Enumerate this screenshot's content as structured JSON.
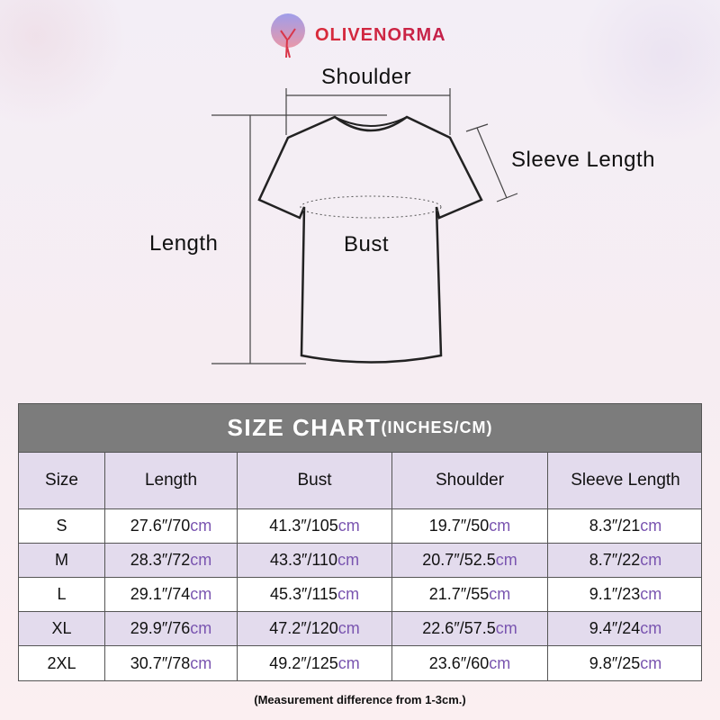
{
  "brand": {
    "name": "OLIVENORMA",
    "color": "#d92b3a"
  },
  "diagram": {
    "shoulder": "Shoulder",
    "sleeve_length": "Sleeve Length",
    "length": "Length",
    "bust": "Bust"
  },
  "table": {
    "title": "SIZE CHART",
    "title_units": "(INCHES/CM)",
    "header_bg": "#7c7c7c",
    "alt_row_bg": "#e3dbed",
    "cm_color": "#7a55b0",
    "columns": [
      "Size",
      "Length",
      "Bust",
      "Shoulder",
      "Sleeve Length"
    ],
    "unit_in": "″/",
    "unit_cm": "cm",
    "rows": [
      {
        "size": "S",
        "cells": [
          [
            "27.6",
            "70"
          ],
          [
            "41.3",
            "105"
          ],
          [
            "19.7",
            "50"
          ],
          [
            "8.3",
            "21"
          ]
        ]
      },
      {
        "size": "M",
        "cells": [
          [
            "28.3",
            "72"
          ],
          [
            "43.3",
            "110"
          ],
          [
            "20.7",
            "52.5"
          ],
          [
            "8.7",
            "22"
          ]
        ]
      },
      {
        "size": "L",
        "cells": [
          [
            "29.1",
            "74"
          ],
          [
            "45.3",
            "115"
          ],
          [
            "21.7",
            "55"
          ],
          [
            "9.1",
            "23"
          ]
        ]
      },
      {
        "size": "XL",
        "cells": [
          [
            "29.9",
            "76"
          ],
          [
            "47.2",
            "120"
          ],
          [
            "22.6",
            "57.5"
          ],
          [
            "9.4",
            "24"
          ]
        ]
      },
      {
        "size": "2XL",
        "cells": [
          [
            "30.7",
            "78"
          ],
          [
            "49.2",
            "125"
          ],
          [
            "23.6",
            "60"
          ],
          [
            "9.8",
            "25"
          ]
        ]
      }
    ]
  },
  "note": "(Measurement difference from 1-3cm.)"
}
